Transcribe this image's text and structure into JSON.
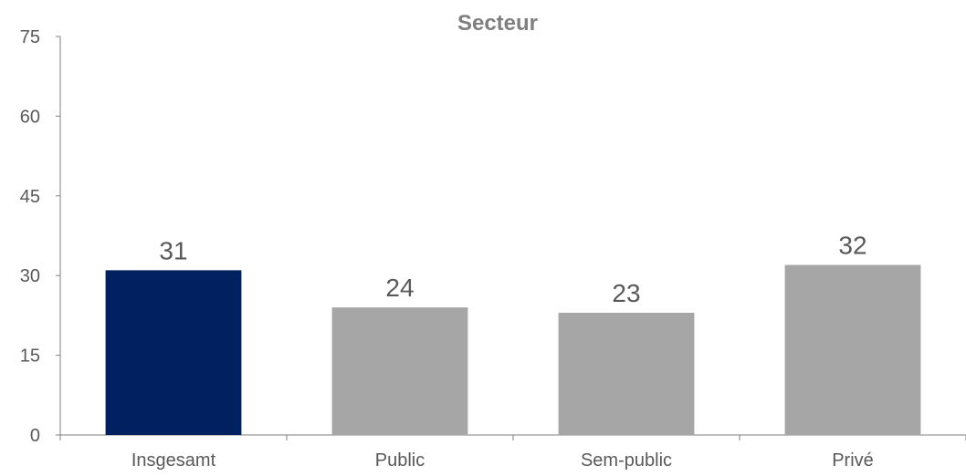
{
  "chart_data": {
    "type": "bar",
    "title": "Secteur",
    "xlabel": "",
    "ylabel": "",
    "categories": [
      "Insgesamt",
      "Public",
      "Sem-public",
      "Privé"
    ],
    "values": [
      31,
      24,
      23,
      32
    ],
    "data_labels": [
      "31",
      "24",
      "23",
      "32"
    ],
    "ylim": [
      0,
      75
    ],
    "yticks": [
      "0",
      "15",
      "30",
      "45",
      "60",
      "75"
    ],
    "bar_colors": [
      "#002060",
      "#a6a6a6",
      "#a6a6a6",
      "#a6a6a6"
    ],
    "grid": false,
    "legend": "none"
  }
}
